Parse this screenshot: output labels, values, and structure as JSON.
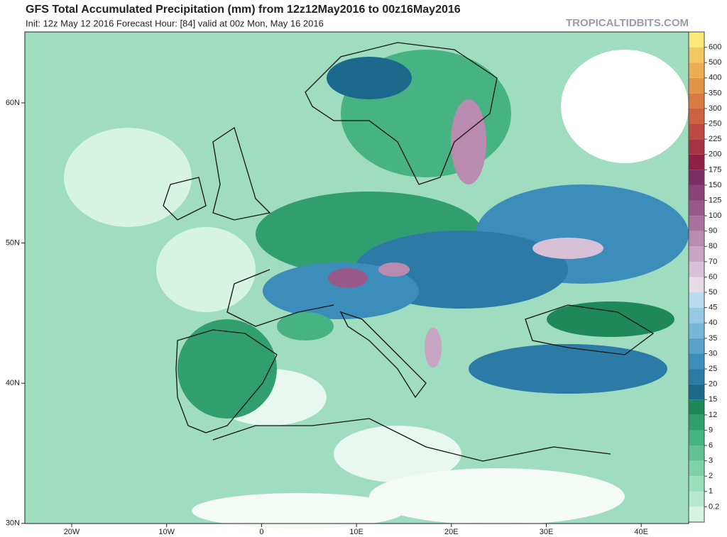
{
  "header": {
    "title": "GFS Total Accumulated Precipitation (mm) from 12z12May2016 to 00z16May2016",
    "subtitle": "Init: 12z May 12 2016   Forecast Hour: [84]   valid at 00z Mon, May 16 2016",
    "brand": "TROPICALTIDBITS.COM"
  },
  "map": {
    "lat_labels": [
      "60N",
      "50N",
      "40N",
      "30N"
    ],
    "lon_labels": [
      "20W",
      "10W",
      "0",
      "10E",
      "20E",
      "30E",
      "40E"
    ]
  },
  "colorbar": {
    "ticks": [
      0.2,
      1,
      2,
      3,
      6,
      9,
      12,
      15,
      20,
      25,
      30,
      35,
      40,
      45,
      50,
      60,
      70,
      80,
      90,
      100,
      125,
      150,
      175,
      200,
      225,
      250,
      300,
      350,
      400,
      500,
      600
    ],
    "colors": [
      "#d6f3e3",
      "#b6e9d0",
      "#9adebe",
      "#7ed1aa",
      "#62c296",
      "#47b282",
      "#309e6e",
      "#1f885a",
      "#1b6a8e",
      "#2c7ba6",
      "#3d8dba",
      "#5aa2cb",
      "#78b6d9",
      "#98c9e4",
      "#b8dbee",
      "#e8dbe8",
      "#d8c0d6",
      "#c9a5c4",
      "#b98bb1",
      "#a9729e",
      "#995a8a",
      "#884276",
      "#7a2d62",
      "#8b2246",
      "#a63444",
      "#bd4a42",
      "#cd6142",
      "#d87a44",
      "#e29449",
      "#ebae52",
      "#f3c862",
      "#fce87a"
    ]
  }
}
